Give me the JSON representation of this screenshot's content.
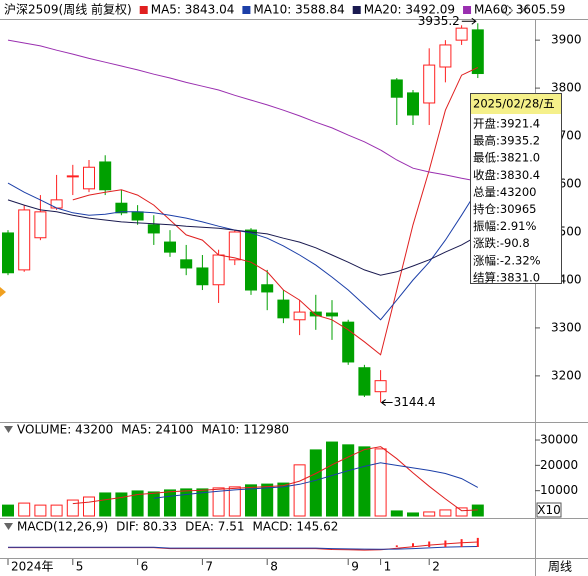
{
  "chart_data": [
    {
      "type": "candlestick",
      "title": "沪深2509(周线 前复权)",
      "categories": [
        "2024年",
        null,
        null,
        null,
        "5",
        null,
        null,
        null,
        "6",
        null,
        null,
        null,
        "7",
        null,
        null,
        null,
        "8",
        null,
        null,
        null,
        null,
        "9",
        null,
        "1",
        null,
        null,
        "2",
        null,
        null,
        null
      ],
      "open": [
        3498,
        3421,
        3488,
        3550,
        3615,
        3590,
        3646,
        3560,
        3542,
        3515,
        3479,
        3442,
        3425,
        3390,
        3442,
        3504,
        3390,
        3358,
        3317,
        3333,
        3331,
        3312,
        3217,
        3167,
        3817,
        3790,
        3769,
        3844,
        3900,
        3921.4
      ],
      "high": [
        3504,
        3556,
        3577,
        3619,
        3640,
        3650,
        3660,
        3588,
        3556,
        3535,
        3504,
        3473,
        3452,
        3463,
        3504,
        3508,
        3421,
        3379,
        3358,
        3369,
        3358,
        3317,
        3223,
        3212,
        3821,
        3796,
        3883,
        3900,
        3931,
        3935.2
      ],
      "low": [
        3410,
        3417,
        3483,
        3546,
        3577,
        3583,
        3577,
        3535,
        3515,
        3473,
        3448,
        3410,
        3379,
        3352,
        3431,
        3369,
        3337,
        3310,
        3285,
        3296,
        3275,
        3223,
        3156,
        3144.4,
        3723,
        3723,
        3723,
        3812,
        3890,
        3821.0
      ],
      "close": [
        3415,
        3546,
        3542,
        3567,
        3617,
        3635,
        3588,
        3540,
        3525,
        3498,
        3458,
        3425,
        3390,
        3452,
        3500,
        3379,
        3375,
        3321,
        3333,
        3325,
        3325,
        3229,
        3160,
        3190,
        3781,
        3744,
        3848,
        3890,
        3925,
        3830.4
      ],
      "up_color": "#ff2020",
      "down_color": "#00a000",
      "series": [
        {
          "name": "MA5: 3843.04",
          "color": "#e02020",
          "values": [
            null,
            null,
            null,
            null,
            3567,
            3577,
            3583,
            3588,
            3577,
            3556,
            3525,
            3494,
            3483,
            3452,
            3446,
            3437,
            3417,
            3379,
            3358,
            3327,
            3317,
            3296,
            3271,
            3244,
            3379,
            3515,
            3629,
            3754,
            3827,
            3843.04
          ]
        },
        {
          "name": "MA10: 3588.84",
          "color": "#1c3fa8",
          "values": [
            3602,
            3583,
            3567,
            3550,
            3540,
            3535,
            3537,
            3542,
            3542,
            3540,
            3535,
            3529,
            3521,
            3512,
            3504,
            3498,
            3487,
            3471,
            3452,
            3431,
            3406,
            3379,
            3348,
            3317,
            3358,
            3400,
            3437,
            3483,
            3535,
            3588.84
          ]
        },
        {
          "name": "MA20: 3492.09",
          "color": "#1a1a50",
          "values": [
            3567,
            3556,
            3546,
            3542,
            3535,
            3529,
            3525,
            3521,
            3519,
            3517,
            3515,
            3512,
            3510,
            3508,
            3504,
            3500,
            3496,
            3487,
            3479,
            3467,
            3452,
            3437,
            3421,
            3410,
            3417,
            3429,
            3442,
            3458,
            3473,
            3492.09
          ]
        },
        {
          "name": "MA60: 3605.59",
          "color": "#9a2fb0",
          "values": [
            3900,
            3894,
            3888,
            3879,
            3871,
            3862,
            3854,
            3846,
            3838,
            3829,
            3821,
            3812,
            3804,
            3796,
            3785,
            3775,
            3765,
            3754,
            3742,
            3729,
            3717,
            3702,
            3688,
            3671,
            3650,
            3633,
            3625,
            3619,
            3612,
            3605.59
          ]
        }
      ],
      "max_label": "3935.2",
      "min_label": "3144.4",
      "ylim": [
        3108,
        3942
      ],
      "yticks": [
        3200,
        3300,
        3400,
        3500,
        3600,
        3700,
        3800,
        3900
      ]
    },
    {
      "type": "bar",
      "name": "VOLUME: 43200",
      "values": [
        4300,
        5100,
        4300,
        4300,
        6300,
        7500,
        9100,
        9100,
        9900,
        9500,
        10300,
        10700,
        10700,
        11100,
        11500,
        12300,
        12600,
        13000,
        20200,
        26100,
        29200,
        28100,
        27300,
        26500,
        2000,
        1200,
        1600,
        2400,
        3200,
        4320
      ],
      "colors": [
        "#00a000",
        "#ff2020",
        "#ff2020",
        "#ff2020",
        "#ff2020",
        "#ff2020",
        "#00a000",
        "#00a000",
        "#00a000",
        "#00a000",
        "#00a000",
        "#00a000",
        "#00a000",
        "#ff2020",
        "#ff2020",
        "#00a000",
        "#00a000",
        "#00a000",
        "#ff2020",
        "#00a000",
        "#00a000",
        "#00a000",
        "#00a000",
        "#ff2020",
        "#00a000",
        "#00a000",
        "#ff2020",
        "#ff2020",
        "#ff2020",
        "#00a000"
      ],
      "hollow_color": "#ff2020",
      "series": [
        {
          "name": "MA5: 24100",
          "color": "#e02020",
          "values": [
            null,
            null,
            null,
            null,
            4900,
            5500,
            6400,
            7300,
            8500,
            9000,
            9600,
            9900,
            10200,
            10600,
            10900,
            11300,
            11600,
            12000,
            13800,
            16800,
            20200,
            23300,
            26200,
            27400,
            22620,
            17020,
            11720,
            6740,
            2080,
            2410
          ]
        },
        {
          "name": "MA10: 112980",
          "color": "#1c3fa8",
          "values": [
            null,
            null,
            null,
            null,
            null,
            null,
            null,
            null,
            null,
            7000,
            7800,
            8500,
            9200,
            9800,
            10300,
            10700,
            11100,
            11500,
            12500,
            14100,
            16000,
            17900,
            19600,
            21000,
            20000,
            19000,
            18000,
            16800,
            14760,
            11298
          ]
        }
      ],
      "ylim": [
        0,
        30800
      ],
      "yticks": [
        10000,
        20000,
        30000
      ]
    },
    {
      "type": "line",
      "title": "MACD(12,26,9)",
      "series": [
        {
          "name": "DIF: 80.33",
          "color": "#e02020",
          "values": [
            -10,
            -10,
            -10,
            -10,
            -10,
            -10,
            -10,
            -10,
            -10,
            -10,
            -25,
            -25,
            -25,
            -25,
            -25,
            -25,
            -25,
            -25,
            -25,
            -25,
            -40,
            -45,
            -50,
            -45,
            -20,
            5,
            30,
            50,
            68,
            80.33
          ]
        },
        {
          "name": "DEA: 7.51",
          "color": "#1c3fa8",
          "values": [
            -5,
            -5,
            -5,
            -5,
            -5,
            -5,
            -5,
            -5,
            -5,
            -5,
            -18,
            -18,
            -18,
            -18,
            -18,
            -18,
            -18,
            -18,
            -18,
            -18,
            -25,
            -30,
            -34,
            -36,
            -33,
            -25,
            -14,
            -2,
            5,
            7.51
          ]
        },
        {
          "name": "MACD: 145.62",
          "color": "#9a2fb0",
          "style": "bar",
          "bar_color": "#ff2020",
          "values": [
            null,
            null,
            null,
            null,
            null,
            null,
            null,
            null,
            null,
            null,
            null,
            null,
            null,
            null,
            null,
            null,
            null,
            null,
            null,
            null,
            null,
            null,
            null,
            null,
            26,
            60,
            88,
            104,
            126,
            145.62
          ]
        }
      ],
      "ylim": [
        -160,
        160
      ]
    }
  ],
  "tooltip": {
    "date": "2025/02/28/五",
    "rows": [
      "开盘:3921.4",
      "最高:3935.2",
      "最低:3821.0",
      "收盘:3830.4",
      "总量:43200",
      "持仓:30965",
      "振幅:2.91%",
      "涨跌:-90.8",
      "涨幅:-2.32%",
      "结算:3831.0"
    ]
  },
  "ui": {
    "scale_button": "X10",
    "period": "周线"
  }
}
